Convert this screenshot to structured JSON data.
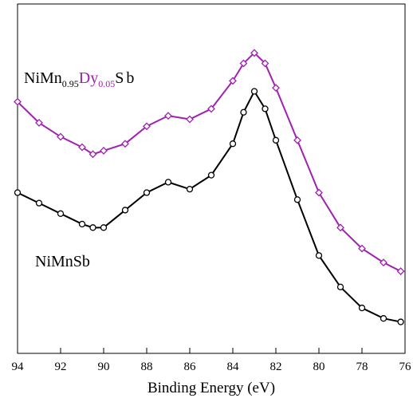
{
  "chart_data": {
    "type": "scatter",
    "x_label": "Binding Energy (eV)",
    "annotations": [
      {
        "parts": [
          "NiMn",
          "0.95",
          "Dy",
          "0.05",
          "Sb"
        ]
      },
      {
        "parts": [
          "NiMnSb"
        ]
      }
    ],
    "x": [
      94,
      93,
      92,
      91,
      90.5,
      90,
      89,
      88,
      87,
      86,
      85,
      84,
      83.5,
      83,
      82.5,
      82,
      81,
      80,
      79,
      78,
      77,
      76.2
    ],
    "series": [
      {
        "name": "NiMn0.95Dy0.05Sb",
        "color": "#a020b0",
        "marker": "diamond",
        "values": [
          72,
          66,
          62,
          59,
          57,
          58,
          60,
          65,
          68,
          67,
          70,
          78,
          83,
          86,
          83,
          76,
          61,
          46,
          36,
          30,
          26,
          23.5
        ]
      },
      {
        "name": "NiMnSb",
        "color": "#000000",
        "marker": "circle",
        "values": [
          46,
          43,
          40,
          37,
          36,
          36,
          41,
          46,
          49,
          47,
          51,
          60,
          69,
          75,
          70,
          61,
          44,
          28,
          19,
          13,
          10,
          9
        ]
      }
    ],
    "xlim": [
      94,
      76
    ],
    "ylim": [
      0,
      100
    ],
    "xticks": [
      94,
      92,
      90,
      88,
      86,
      84,
      82,
      80,
      78,
      76
    ]
  }
}
